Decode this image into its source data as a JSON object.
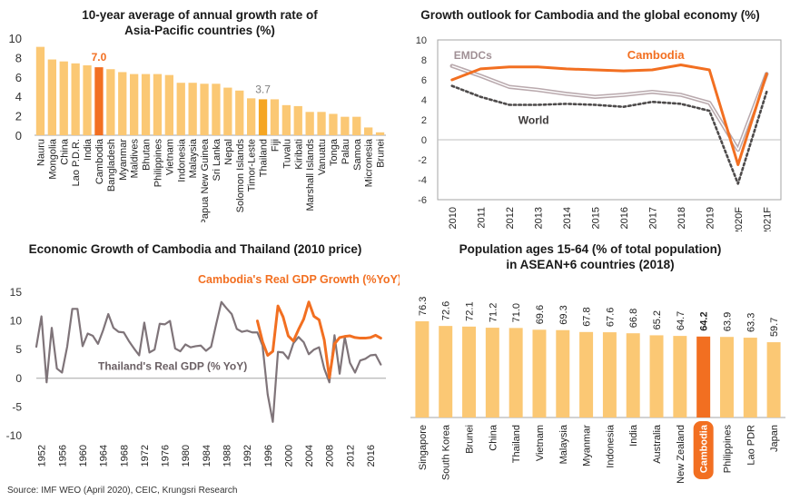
{
  "source": "Source: IMF WEO (April 2020), CEIC, Krungsri Research",
  "colors": {
    "light": "#fbc874",
    "highlight": "#f26f21",
    "emdc": "#b9a9ad",
    "world": "#4d4a4a",
    "thailand": "#7f7479",
    "cambodia": "#f26f21",
    "grid": "#d9d9d9",
    "axis": "#a6a6a6"
  },
  "chart_data": [
    {
      "id": "asia-pacific-growth",
      "type": "bar",
      "title_line1": "10-year average of annual growth rate of",
      "title_line2": "Asia-Pacific countries (%)",
      "ylim": [
        0,
        10
      ],
      "yticks": [
        "0",
        "2",
        "4",
        "6",
        "8",
        "10"
      ],
      "categories": [
        "Nauru",
        "Mongolia",
        "China",
        "Lao P.D.R.",
        "India",
        "Cambodia",
        "Bangladesh",
        "Myanmar",
        "Maldives",
        "Bhutan",
        "Philippines",
        "Vietnam",
        "Indonesia",
        "Malaysia",
        "Papua New Guinea",
        "Sri Lanka",
        "Nepal",
        "Solomon Islands",
        "Timor-Leste",
        "Thailand",
        "Fiji",
        "Tuvalu",
        "Kiribati",
        "Marshall Islands",
        "Vanuatu",
        "Tonga",
        "Palau",
        "Samoa",
        "Micronesia",
        "Brunei"
      ],
      "values": [
        9.1,
        7.8,
        7.6,
        7.4,
        7.2,
        7.0,
        6.8,
        6.5,
        6.3,
        6.3,
        6.3,
        6.2,
        5.4,
        5.4,
        5.3,
        5.3,
        4.9,
        4.6,
        3.8,
        3.7,
        3.7,
        3.1,
        3.0,
        2.4,
        2.4,
        2.2,
        1.9,
        1.9,
        0.8,
        0.3
      ],
      "highlight": [
        "Cambodia",
        "Thailand"
      ],
      "data_labels": [
        {
          "category": "Cambodia",
          "text": "7.0"
        },
        {
          "category": "Thailand",
          "text": "3.7"
        }
      ]
    },
    {
      "id": "growth-outlook",
      "type": "line",
      "title": "Growth outlook for Cambodia and the global economy (%)",
      "ylim": [
        -6,
        10
      ],
      "yticks": [
        "-6",
        "-4",
        "-2",
        "0",
        "2",
        "4",
        "6",
        "8",
        "10"
      ],
      "x": [
        "2010",
        "2011",
        "2012",
        "2013",
        "2014",
        "2015",
        "2016",
        "2017",
        "2018",
        "2019",
        "2020F",
        "2021F"
      ],
      "series": [
        {
          "name": "EMDCs",
          "values": [
            7.4,
            6.4,
            5.3,
            5.0,
            4.6,
            4.3,
            4.5,
            4.8,
            4.5,
            3.7,
            -1.0,
            6.6
          ]
        },
        {
          "name": "World",
          "values": [
            5.4,
            4.3,
            3.5,
            3.5,
            3.6,
            3.5,
            3.3,
            3.8,
            3.6,
            2.9,
            -4.4,
            4.8
          ]
        },
        {
          "name": "Cambodia",
          "values": [
            6.0,
            7.1,
            7.3,
            7.3,
            7.1,
            7.0,
            6.9,
            7.0,
            7.5,
            7.0,
            -2.5,
            6.6
          ]
        }
      ]
    },
    {
      "id": "cambodia-thailand-growth",
      "type": "line",
      "title": "Economic Growth of Cambodia and Thailand (2010 price)",
      "ylim": [
        -10,
        15
      ],
      "yticks": [
        "-10",
        "-5",
        "0",
        "5",
        "10",
        "15"
      ],
      "x_start": 1952,
      "x_end": 2019,
      "xticks": [
        "1952",
        "1956",
        "1960",
        "1964",
        "1968",
        "1972",
        "1976",
        "1980",
        "1984",
        "1988",
        "1992",
        "1996",
        "2000",
        "2004",
        "2008",
        "2012",
        "2016"
      ],
      "series": [
        {
          "name": "Thailand's Real GDP (% YoY)",
          "x_start": 1951,
          "values": [
            5.5,
            10.8,
            -0.7,
            8.8,
            1.7,
            1.0,
            5.5,
            12.1,
            12.1,
            5.6,
            7.8,
            7.4,
            6.0,
            8.4,
            11.2,
            8.8,
            8.1,
            8.0,
            6.5,
            5.2,
            4.0,
            9.7,
            4.5,
            5.0,
            9.5,
            9.4,
            10.0,
            5.2,
            4.7,
            5.9,
            5.4,
            5.6,
            5.7,
            4.8,
            5.5,
            9.5,
            13.3,
            12.2,
            11.2,
            8.6,
            8.1,
            8.3,
            8.0,
            8.0,
            5.7,
            -2.8,
            -7.6,
            4.6,
            4.5,
            3.4,
            6.1,
            7.2,
            6.3,
            4.2,
            5.0,
            5.4,
            1.7,
            -0.7,
            7.5,
            0.8,
            7.2,
            2.7,
            1.0,
            3.1,
            3.4,
            4.0,
            4.1,
            2.4
          ]
        },
        {
          "name": "Cambodia's Real GDP Growth (%YoY)",
          "x_start": 1994,
          "values": [
            10.0,
            6.4,
            4.0,
            4.7,
            12.6,
            10.7,
            7.4,
            6.5,
            8.5,
            10.3,
            13.3,
            10.8,
            10.2,
            6.7,
            0.1,
            6.0,
            7.1,
            7.3,
            7.4,
            7.1,
            7.0,
            7.0,
            7.1,
            7.5,
            7.0
          ]
        }
      ]
    },
    {
      "id": "population-15-64",
      "type": "bar",
      "title_line1": "Population ages 15-64 (% of total population)",
      "title_line2": "in ASEAN+6 countries (2018)",
      "categories": [
        "Singapore",
        "South Korea",
        "Brunei",
        "China",
        "Thailand",
        "Vietnam",
        "Malaysia",
        "Myanmar",
        "Indonesia",
        "India",
        "Australia",
        "New Zealand",
        "Cambodia",
        "Philippines",
        "Lao PDR",
        "Japan"
      ],
      "values": [
        76.3,
        72.6,
        72.1,
        71.2,
        71.0,
        69.6,
        69.3,
        67.8,
        67.6,
        66.8,
        65.2,
        64.7,
        64.2,
        63.9,
        63.3,
        59.7
      ],
      "labels": [
        "76.3",
        "72.6",
        "72.1",
        "71.2",
        "71.0",
        "69.6",
        "69.3",
        "67.8",
        "67.6",
        "66.8",
        "65.2",
        "64.7",
        "64.2",
        "63.9",
        "63.3",
        "59.7"
      ],
      "highlight": [
        "Cambodia"
      ]
    }
  ]
}
